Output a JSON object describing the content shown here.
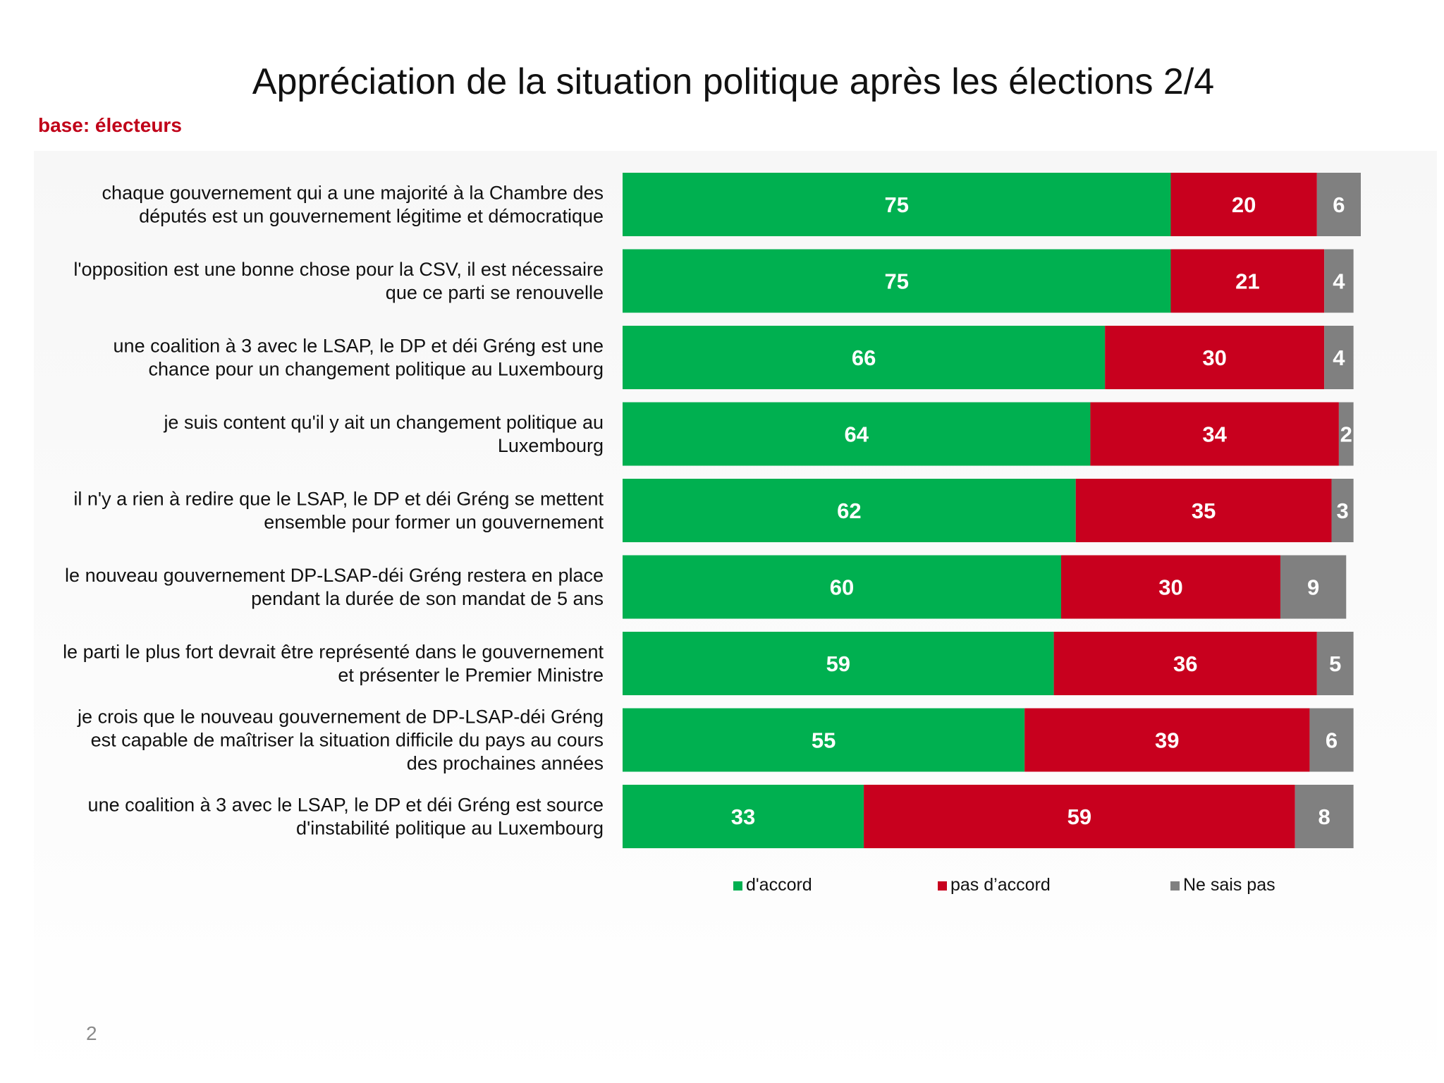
{
  "page": {
    "title": "Appréciation de la situation politique après les élections 2/4",
    "base_label": "base: électeurs",
    "page_number": "2"
  },
  "chart_data": {
    "type": "bar",
    "orientation": "horizontal",
    "stacked": true,
    "title": "Appréciation de la situation politique après les élections 2/4",
    "categories": [
      [
        "chaque gouvernement qui a une majorité à la Chambre des",
        "députés est un gouvernement légitime et démocratique"
      ],
      [
        "l'opposition est une bonne chose pour la CSV, il est nécessaire",
        "que ce parti se renouvelle"
      ],
      [
        "une coalition à 3 avec le LSAP, le DP et déi Gréng est une",
        "chance pour un changement politique au Luxembourg"
      ],
      [
        "je suis content qu'il y ait un changement politique au",
        "Luxembourg"
      ],
      [
        "il n'y a rien à redire que le LSAP, le DP et déi Gréng se mettent",
        "ensemble pour former un gouvernement"
      ],
      [
        "le nouveau gouvernement DP-LSAP-déi Gréng restera en place",
        "pendant la durée de son mandat de 5 ans"
      ],
      [
        "le parti le plus fort devrait être représenté dans le gouvernement",
        "et présenter le Premier Ministre"
      ],
      [
        "je crois que le nouveau gouvernement de DP-LSAP-déi Gréng",
        "est capable de maîtriser la situation difficile du pays au cours",
        "des prochaines années"
      ],
      [
        "une coalition à 3 avec le LSAP, le DP et déi Gréng est source",
        "d'instabilité politique au Luxembourg"
      ]
    ],
    "series": [
      {
        "name": "d'accord",
        "color": "#00b050",
        "values": [
          75,
          75,
          66,
          64,
          62,
          60,
          59,
          55,
          33
        ]
      },
      {
        "name": "pas d’accord",
        "color": "#c8001e",
        "values": [
          20,
          21,
          30,
          34,
          35,
          30,
          36,
          39,
          59
        ]
      },
      {
        "name": "Ne sais pas",
        "color": "#808080",
        "values": [
          6,
          4,
          4,
          2,
          3,
          9,
          5,
          6,
          8
        ]
      }
    ],
    "xlim": [
      0,
      101
    ],
    "legend": "bottom"
  }
}
